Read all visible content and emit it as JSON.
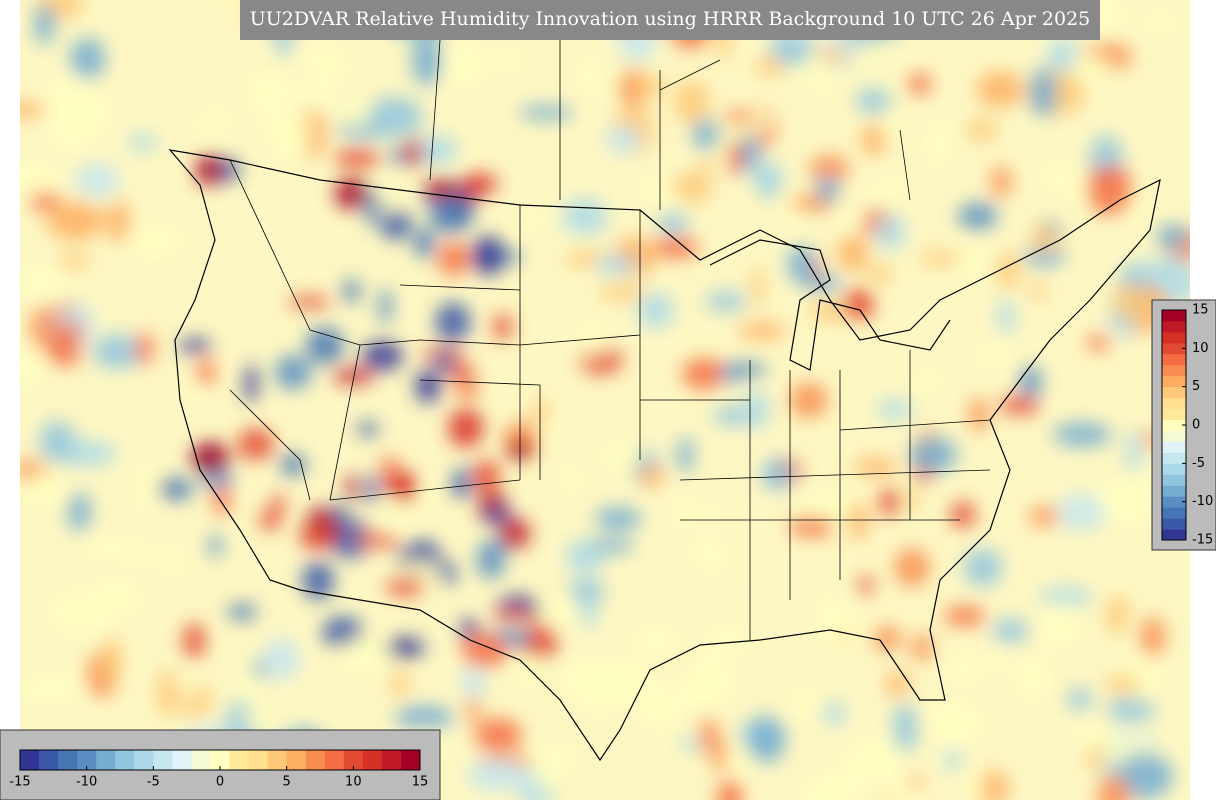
{
  "title": "UU2DVAR Relative Humidity Innovation using HRRR Background 10 UTC 26 Apr 2025",
  "colorbars": [
    {
      "orientation": "horizontal",
      "range": [
        -15,
        15
      ],
      "ticks": [
        -15,
        -10,
        -5,
        0,
        5,
        10,
        15
      ]
    },
    {
      "orientation": "vertical",
      "range": [
        -15,
        15
      ],
      "ticks": [
        -15,
        -10,
        -5,
        0,
        5,
        10,
        15
      ]
    }
  ],
  "colors": [
    "#313695",
    "#3a58a8",
    "#4575b4",
    "#5b8fc3",
    "#74add1",
    "#92c5de",
    "#abd9e9",
    "#c6e6f0",
    "#e0f3f8",
    "#f4fbd2",
    "#ffffbf",
    "#fee99b",
    "#fee090",
    "#fdc877",
    "#fdae61",
    "#f88d52",
    "#f46d43",
    "#e34a33",
    "#d73027",
    "#c11a27",
    "#a50026"
  ]
}
